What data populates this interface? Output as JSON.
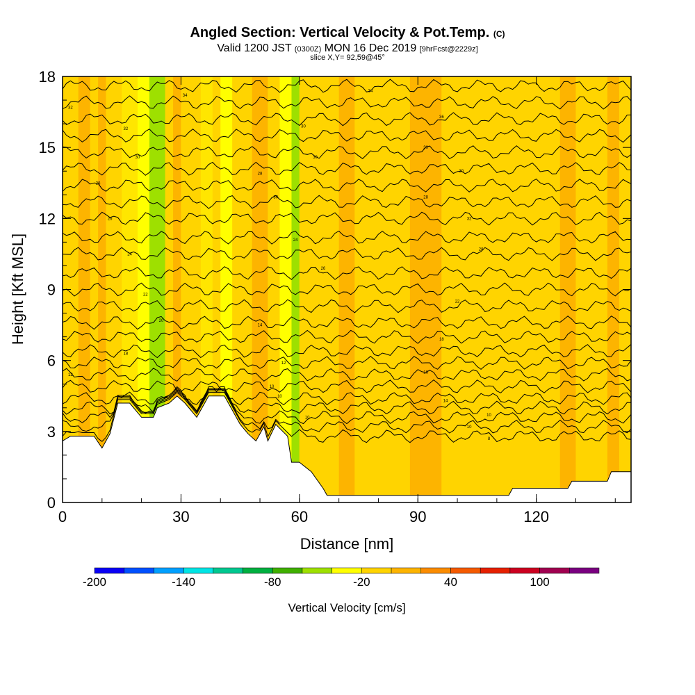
{
  "header": {
    "title": "Angled Section: Vertical Velocity & Pot.Temp.",
    "title_unit": "(C)",
    "valid_prefix": "Valid 1200 JST",
    "valid_utc": "(0300Z)",
    "valid_date": "MON 16 Dec 2019",
    "forecast": "[9hrFcst@2229z]",
    "slice": "slice X,Y= 92,59@45°"
  },
  "chart_data": {
    "type": "heatmap",
    "xlabel": "Distance [nm]",
    "ylabel": "Height [Kft MSL]",
    "xlim": [
      0,
      144
    ],
    "ylim": [
      0,
      18
    ],
    "x_ticks": [
      "0",
      "30",
      "60",
      "90",
      "120"
    ],
    "y_ticks": [
      "0",
      "3",
      "6",
      "9",
      "12",
      "15",
      "18"
    ],
    "terrain": [
      {
        "x": 0,
        "h": 2.6
      },
      {
        "x": 2,
        "h": 2.8
      },
      {
        "x": 5,
        "h": 2.8
      },
      {
        "x": 8,
        "h": 2.8
      },
      {
        "x": 10,
        "h": 2.3
      },
      {
        "x": 12,
        "h": 2.9
      },
      {
        "x": 14,
        "h": 4.2
      },
      {
        "x": 17,
        "h": 4.2
      },
      {
        "x": 19,
        "h": 3.8
      },
      {
        "x": 20,
        "h": 3.6
      },
      {
        "x": 23,
        "h": 3.6
      },
      {
        "x": 24,
        "h": 4.0
      },
      {
        "x": 27,
        "h": 4.2
      },
      {
        "x": 29,
        "h": 4.5
      },
      {
        "x": 31,
        "h": 4.2
      },
      {
        "x": 34,
        "h": 3.6
      },
      {
        "x": 36,
        "h": 4.2
      },
      {
        "x": 37,
        "h": 4.5
      },
      {
        "x": 41,
        "h": 4.5
      },
      {
        "x": 43,
        "h": 3.9
      },
      {
        "x": 45,
        "h": 3.3
      },
      {
        "x": 47,
        "h": 2.9
      },
      {
        "x": 49,
        "h": 2.6
      },
      {
        "x": 51,
        "h": 3.2
      },
      {
        "x": 52,
        "h": 2.6
      },
      {
        "x": 54,
        "h": 3.3
      },
      {
        "x": 57,
        "h": 2.8
      },
      {
        "x": 58,
        "h": 1.7
      },
      {
        "x": 60,
        "h": 1.7
      },
      {
        "x": 63,
        "h": 1.3
      },
      {
        "x": 66,
        "h": 0.6
      },
      {
        "x": 67,
        "h": 0.3
      },
      {
        "x": 90,
        "h": 0.3
      },
      {
        "x": 113,
        "h": 0.3
      },
      {
        "x": 114,
        "h": 0.6
      },
      {
        "x": 128,
        "h": 0.6
      },
      {
        "x": 129,
        "h": 0.9
      },
      {
        "x": 138,
        "h": 0.9
      },
      {
        "x": 139,
        "h": 1.3
      },
      {
        "x": 144,
        "h": 1.3
      }
    ],
    "vertical_velocity_bands": [
      {
        "x0": 0,
        "x1": 4,
        "color": "#ffd400"
      },
      {
        "x0": 4,
        "x1": 7,
        "color": "#fdb400"
      },
      {
        "x0": 7,
        "x1": 9,
        "color": "#ffd400"
      },
      {
        "x0": 9,
        "x1": 11,
        "color": "#fdb400"
      },
      {
        "x0": 11,
        "x1": 15,
        "color": "#ffd400"
      },
      {
        "x0": 15,
        "x1": 19,
        "color": "#ffe600"
      },
      {
        "x0": 19,
        "x1": 22,
        "color": "#ffff00"
      },
      {
        "x0": 22,
        "x1": 26,
        "color": "#9ee000"
      },
      {
        "x0": 26,
        "x1": 28,
        "color": "#ffd400"
      },
      {
        "x0": 28,
        "x1": 30,
        "color": "#fdb400"
      },
      {
        "x0": 30,
        "x1": 35,
        "color": "#ffd400"
      },
      {
        "x0": 35,
        "x1": 38,
        "color": "#ffe600"
      },
      {
        "x0": 38,
        "x1": 40,
        "color": "#ffd400"
      },
      {
        "x0": 40,
        "x1": 43,
        "color": "#ffff00"
      },
      {
        "x0": 43,
        "x1": 48,
        "color": "#ffd400"
      },
      {
        "x0": 48,
        "x1": 52,
        "color": "#fdb400"
      },
      {
        "x0": 52,
        "x1": 55,
        "color": "#ffd400"
      },
      {
        "x0": 55,
        "x1": 58,
        "color": "#ffff00"
      },
      {
        "x0": 58,
        "x1": 60,
        "color": "#9ee000"
      },
      {
        "x0": 60,
        "x1": 70,
        "color": "#ffd400"
      },
      {
        "x0": 70,
        "x1": 74,
        "color": "#fdb400"
      },
      {
        "x0": 74,
        "x1": 88,
        "color": "#ffd400"
      },
      {
        "x0": 88,
        "x1": 96,
        "color": "#fdb400"
      },
      {
        "x0": 96,
        "x1": 126,
        "color": "#ffd400"
      },
      {
        "x0": 126,
        "x1": 130,
        "color": "#fdb400"
      },
      {
        "x0": 130,
        "x1": 138,
        "color": "#ffd400"
      },
      {
        "x0": 138,
        "x1": 141,
        "color": "#fdb400"
      },
      {
        "x0": 141,
        "x1": 144,
        "color": "#ffd400"
      }
    ],
    "theta_levels_base": [
      2.8,
      3.2,
      3.6,
      4.0,
      4.4,
      4.9,
      5.4,
      5.9,
      6.4,
      7.0,
      7.6,
      8.3,
      9.0,
      9.7,
      10.5,
      11.2,
      12.0,
      12.7,
      13.4,
      14.1,
      14.8,
      15.5,
      16.2,
      16.9,
      17.6
    ],
    "contour_labels": [
      {
        "x": 2,
        "y": 5.4,
        "text": "12"
      },
      {
        "x": 16,
        "y": 6.3,
        "text": "18"
      },
      {
        "x": 25,
        "y": 7.7,
        "text": "20"
      },
      {
        "x": 21,
        "y": 8.8,
        "text": "22"
      },
      {
        "x": 17,
        "y": 10.5,
        "text": "24"
      },
      {
        "x": 12,
        "y": 12.0,
        "text": "26"
      },
      {
        "x": 9,
        "y": 13.5,
        "text": "28"
      },
      {
        "x": 19,
        "y": 14.6,
        "text": "30"
      },
      {
        "x": 16,
        "y": 15.8,
        "text": "32"
      },
      {
        "x": 31,
        "y": 17.2,
        "text": "34"
      },
      {
        "x": 2,
        "y": 16.7,
        "text": "32"
      },
      {
        "x": 50,
        "y": 7.5,
        "text": "14"
      },
      {
        "x": 56,
        "y": 5.9,
        "text": "12"
      },
      {
        "x": 53,
        "y": 4.9,
        "text": "10"
      },
      {
        "x": 55,
        "y": 4.5,
        "text": "10"
      },
      {
        "x": 62,
        "y": 3.6,
        "text": "10"
      },
      {
        "x": 66,
        "y": 9.9,
        "text": "26"
      },
      {
        "x": 59,
        "y": 11.1,
        "text": "24"
      },
      {
        "x": 54,
        "y": 12.9,
        "text": "30"
      },
      {
        "x": 50,
        "y": 13.9,
        "text": "28"
      },
      {
        "x": 64,
        "y": 14.6,
        "text": "30"
      },
      {
        "x": 61,
        "y": 15.9,
        "text": "30"
      },
      {
        "x": 78,
        "y": 17.4,
        "text": "34"
      },
      {
        "x": 96,
        "y": 16.3,
        "text": "36"
      },
      {
        "x": 92,
        "y": 15.0,
        "text": "30"
      },
      {
        "x": 101,
        "y": 14.0,
        "text": "30"
      },
      {
        "x": 92,
        "y": 12.9,
        "text": "28"
      },
      {
        "x": 103,
        "y": 12.0,
        "text": "32"
      },
      {
        "x": 106,
        "y": 10.7,
        "text": "28"
      },
      {
        "x": 100,
        "y": 8.5,
        "text": "22"
      },
      {
        "x": 96,
        "y": 6.9,
        "text": "18"
      },
      {
        "x": 92,
        "y": 5.5,
        "text": "16"
      },
      {
        "x": 97,
        "y": 4.3,
        "text": "14"
      },
      {
        "x": 108,
        "y": 3.7,
        "text": "10"
      },
      {
        "x": 103,
        "y": 3.2,
        "text": "10"
      },
      {
        "x": 108,
        "y": 2.7,
        "text": "8"
      }
    ],
    "colorbar": {
      "label": "Vertical Velocity [cm/s]",
      "tick_labels": [
        "-200",
        "-140",
        "-80",
        "-20",
        "40",
        "100"
      ],
      "tick_values": [
        -200,
        -140,
        -80,
        -20,
        40,
        100
      ],
      "range": [
        -200,
        140
      ],
      "step": 20,
      "colors": [
        "#0a00f5",
        "#0050ff",
        "#00a0ff",
        "#00e5e5",
        "#00c890",
        "#00b040",
        "#40b000",
        "#9ee000",
        "#ffff00",
        "#ffd400",
        "#fdb400",
        "#fb8c00",
        "#f55a00",
        "#e62000",
        "#cc0020",
        "#a00050",
        "#7a0080"
      ]
    }
  }
}
